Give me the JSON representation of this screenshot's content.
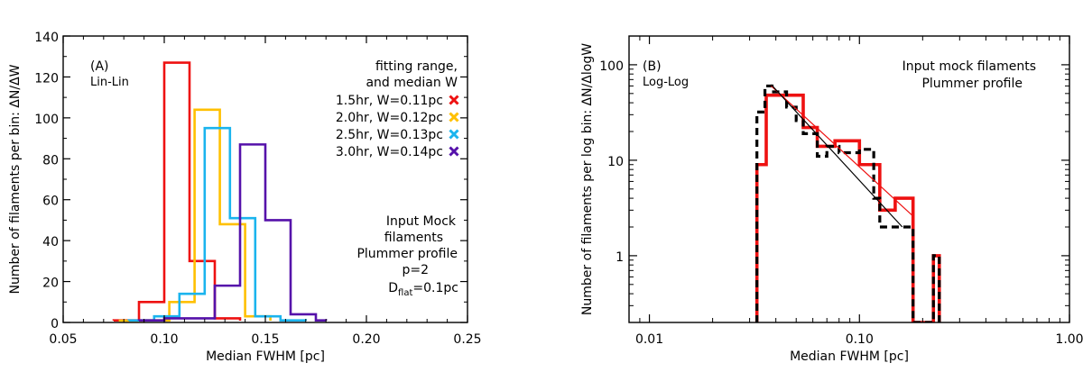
{
  "chart_data": [
    {
      "type": "histogram",
      "panel_label": "(A)",
      "scale_note": "Lin-Lin",
      "xlabel": "Median FWHM [pc]",
      "ylabel": "Number of filaments per bin: ΔN/ΔW",
      "xlim": [
        0.05,
        0.25
      ],
      "ylim": [
        0,
        140
      ],
      "xticks": [
        0.05,
        0.1,
        0.15,
        0.2,
        0.25
      ],
      "xtick_labels": [
        "0.05",
        "0.10",
        "0.15",
        "0.20",
        "0.25"
      ],
      "yticks": [
        0,
        20,
        40,
        60,
        80,
        100,
        120,
        140
      ],
      "ytick_labels": [
        "0",
        "20",
        "40",
        "60",
        "80",
        "100",
        "120",
        "140"
      ],
      "legend_title": [
        "fitting range,",
        "and median W"
      ],
      "series": [
        {
          "name": "1.5hr, W=0.11pc",
          "color": "#ee1111",
          "edges": [
            0.075,
            0.0875,
            0.1,
            0.1125,
            0.125,
            0.1375
          ],
          "values": [
            1,
            10,
            127,
            30,
            2
          ]
        },
        {
          "name": "2.0hr, W=0.12pc",
          "color": "#ffc000",
          "edges": [
            0.0775,
            0.09,
            0.1025,
            0.115,
            0.1275,
            0.14,
            0.1525
          ],
          "values": [
            0,
            1,
            10,
            104,
            48,
            3
          ]
        },
        {
          "name": "2.5hr, W=0.13pc",
          "color": "#1bb4ee",
          "edges": [
            0.0825,
            0.095,
            0.1075,
            0.12,
            0.1325,
            0.145,
            0.1575,
            0.17
          ],
          "values": [
            1,
            3,
            14,
            95,
            51,
            3,
            1
          ]
        },
        {
          "name": "3.0hr, W=0.14pc",
          "color": "#5511aa",
          "edges": [
            0.0875,
            0.1,
            0.1125,
            0.125,
            0.1375,
            0.15,
            0.1625,
            0.175,
            0.18
          ],
          "values": [
            1,
            2,
            2,
            18,
            87,
            50,
            4,
            1
          ]
        }
      ],
      "annotation_lines": [
        "Input Mock",
        "filaments",
        "Plummer profile",
        "p=2"
      ],
      "annotation_dflat": {
        "symbol": "D",
        "subscript": "flat",
        "value": "=0.1pc"
      }
    },
    {
      "type": "histogram",
      "panel_label": "(B)",
      "scale_note": "Log-Log",
      "xlabel": "Median FWHM [pc]",
      "ylabel": "Number of filaments per log bin: ΔN/ΔlogW",
      "xscale": "log",
      "yscale": "log",
      "xlim": [
        0.008,
        1.0
      ],
      "ylim": [
        0.2,
        200
      ],
      "xticks": [
        0.01,
        0.1,
        1.0
      ],
      "xtick_labels": [
        "0.01",
        "0.10",
        "1.00"
      ],
      "yticks": [
        1,
        10,
        100
      ],
      "ytick_labels": [
        "1",
        "10",
        "100"
      ],
      "annotation_lines": [
        "Input mock filaments",
        "Plummer profile"
      ],
      "series": [
        {
          "name": "red histogram",
          "color": "#ee1111",
          "style": "solid",
          "edges": [
            0.0325,
            0.036,
            0.045,
            0.054,
            0.063,
            0.0765,
            0.1,
            0.125,
            0.148,
            0.18,
            0.2,
            0.225,
            0.24
          ],
          "values": [
            9,
            48,
            48,
            22,
            14,
            16,
            9,
            3,
            4,
            0.2,
            0.2,
            1
          ]
        },
        {
          "name": "black dashed histogram",
          "color": "#000000",
          "style": "dashed",
          "edges": [
            0.0325,
            0.0355,
            0.039,
            0.045,
            0.05,
            0.054,
            0.063,
            0.07,
            0.08,
            0.1,
            0.117,
            0.125,
            0.148,
            0.175,
            0.18,
            0.2,
            0.225,
            0.24
          ],
          "values": [
            32,
            60,
            52,
            36,
            26,
            19,
            11,
            14,
            12,
            13,
            4,
            2,
            2,
            2,
            0.2,
            0.2,
            1
          ]
        }
      ],
      "fit_lines": [
        {
          "name": "red fit",
          "color": "#ee1111",
          "x": [
            0.038,
            0.18
          ],
          "y": [
            60,
            2.6
          ]
        },
        {
          "name": "black fit",
          "color": "#000000",
          "x": [
            0.038,
            0.16
          ],
          "y": [
            62,
            2.0
          ]
        }
      ]
    }
  ]
}
